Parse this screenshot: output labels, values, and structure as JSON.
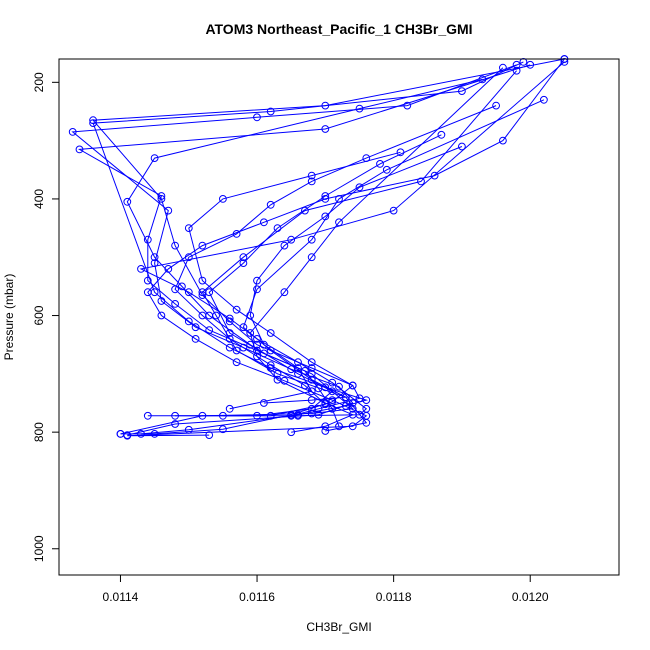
{
  "chart_data": {
    "type": "line",
    "title": "ATOM3 Northeast_Pacific_1 CH3Br_GMI",
    "xlabel": "CH3Br_GMI",
    "ylabel": "Pressure (mbar)",
    "xlim": [
      0.01131,
      0.01213
    ],
    "ylim": [
      1045,
      160
    ],
    "y_inverted": true,
    "grid": false,
    "x_ticks": [
      {
        "value": 0.0114,
        "label": "0.0114"
      },
      {
        "value": 0.0116,
        "label": "0.0116"
      },
      {
        "value": 0.0118,
        "label": "0.0118"
      },
      {
        "value": 0.012,
        "label": "0.0120"
      }
    ],
    "y_ticks": [
      {
        "value": 200,
        "label": "200"
      },
      {
        "value": 400,
        "label": "400"
      },
      {
        "value": 600,
        "label": "600"
      },
      {
        "value": 800,
        "label": "800"
      },
      {
        "value": 1000,
        "label": "1000"
      }
    ],
    "series_color": "#0000ff",
    "series": [
      {
        "x": [
          0.01153,
          0.01141,
          0.01174,
          0.01176,
          0.01171,
          0.01164,
          0.01157,
          0.01151,
          0.01146,
          0.01144,
          0.01147,
          0.01152,
          0.01161,
          0.0117,
          0.01186,
          0.01196,
          0.01205
        ],
        "y": [
          805,
          806,
          790,
          772,
          745,
          712,
          680,
          640,
          600,
          560,
          520,
          480,
          440,
          400,
          360,
          300,
          160
        ]
      },
      {
        "x": [
          0.01143,
          0.0115,
          0.01166,
          0.01173,
          0.01176,
          0.0117,
          0.01162,
          0.01156,
          0.0115,
          0.01145,
          0.01136,
          0.01162,
          0.0119,
          0.01199
        ],
        "y": [
          803,
          796,
          770,
          755,
          745,
          723,
          690,
          655,
          610,
          560,
          270,
          250,
          215,
          165
        ]
      },
      {
        "x": [
          0.01141,
          0.01148,
          0.01169,
          0.01174,
          0.01172,
          0.01165,
          0.01158,
          0.01151,
          0.01146,
          0.01145,
          0.01147,
          0.01133,
          0.0116,
          0.01182,
          0.01198
        ],
        "y": [
          805,
          786,
          770,
          750,
          722,
          692,
          655,
          620,
          575,
          510,
          420,
          285,
          260,
          240,
          170
        ]
      },
      {
        "x": [
          0.0114,
          0.01152,
          0.01168,
          0.01174,
          0.01168,
          0.0116,
          0.01153,
          0.01148,
          0.01144,
          0.01144,
          0.01146,
          0.01134,
          0.0117,
          0.012
        ],
        "y": [
          803,
          772,
          768,
          760,
          700,
          660,
          625,
          580,
          540,
          470,
          395,
          315,
          280,
          170
        ]
      },
      {
        "x": [
          0.0114,
          0.01145,
          0.01155,
          0.01165,
          0.01171,
          0.01174,
          0.01168,
          0.0116,
          0.01156,
          0.01152,
          0.01148,
          0.01146,
          0.01136,
          0.0117,
          0.01205
        ],
        "y": [
          803,
          803,
          795,
          770,
          748,
          720,
          690,
          650,
          610,
          565,
          480,
          400,
          265,
          240,
          160
        ]
      },
      {
        "x": [
          0.01144,
          0.0116,
          0.01168,
          0.01171,
          0.01166,
          0.01159,
          0.01153,
          0.01149,
          0.01145,
          0.01141,
          0.01145,
          0.01175,
          0.01193
        ],
        "y": [
          772,
          772,
          760,
          730,
          700,
          650,
          600,
          550,
          500,
          405,
          330,
          245,
          195
        ]
      },
      {
        "x": [
          0.01148,
          0.01162,
          0.0117,
          0.01167,
          0.01162,
          0.01156,
          0.01152,
          0.01148,
          0.0115,
          0.01157,
          0.01162,
          0.01168,
          0.01176,
          0.01195
        ],
        "y": [
          772,
          772,
          752,
          720,
          685,
          640,
          600,
          555,
          500,
          460,
          410,
          370,
          330,
          240
        ]
      },
      {
        "x": [
          0.01155,
          0.01166,
          0.01175,
          0.01176,
          0.01171,
          0.01166,
          0.0116,
          0.01156,
          0.0115,
          0.01143,
          0.01165,
          0.0118,
          0.01205
        ],
        "y": [
          772,
          772,
          770,
          760,
          715,
          680,
          640,
          605,
          560,
          520,
          470,
          420,
          165
        ]
      },
      {
        "x": [
          0.01165,
          0.01169,
          0.01175,
          0.01174,
          0.01168,
          0.01162,
          0.01157,
          0.01152,
          0.0115,
          0.01155,
          0.01168,
          0.01181
        ],
        "y": [
          772,
          760,
          742,
          720,
          680,
          630,
          590,
          540,
          450,
          400,
          360,
          320
        ]
      },
      {
        "x": [
          0.0117,
          0.01176,
          0.01173,
          0.01163,
          0.01157,
          0.01154,
          0.01152,
          0.01158,
          0.01167,
          0.01184,
          0.01198
        ],
        "y": [
          798,
          784,
          740,
          700,
          660,
          600,
          560,
          500,
          420,
          370,
          180
        ]
      },
      {
        "x": [
          0.01161,
          0.01168,
          0.01173,
          0.01168,
          0.01162,
          0.01158,
          0.0116,
          0.01168,
          0.01172,
          0.01179,
          0.01202
        ],
        "y": [
          750,
          745,
          740,
          710,
          660,
          620,
          555,
          470,
          400,
          350,
          230
        ]
      },
      {
        "x": [
          0.01156,
          0.01168,
          0.01166,
          0.01161,
          0.01159,
          0.0116,
          0.01164,
          0.0117,
          0.01175,
          0.0119
        ],
        "y": [
          760,
          730,
          690,
          650,
          600,
          540,
          480,
          430,
          380,
          310
        ]
      },
      {
        "x": [
          0.01165,
          0.0117,
          0.01174,
          0.0117,
          0.01163,
          0.0116,
          0.01159,
          0.01164,
          0.01168,
          0.01172,
          0.01196
        ],
        "y": [
          800,
          790,
          770,
          750,
          710,
          670,
          630,
          560,
          500,
          440,
          175
        ]
      },
      {
        "x": [
          0.01172,
          0.01171,
          0.01169,
          0.01167,
          0.01161,
          0.01156,
          0.01153,
          0.01158,
          0.01163,
          0.0117,
          0.01178,
          0.01187
        ],
        "y": [
          790,
          760,
          725,
          695,
          665,
          630,
          560,
          510,
          450,
          395,
          340,
          290
        ]
      }
    ]
  }
}
